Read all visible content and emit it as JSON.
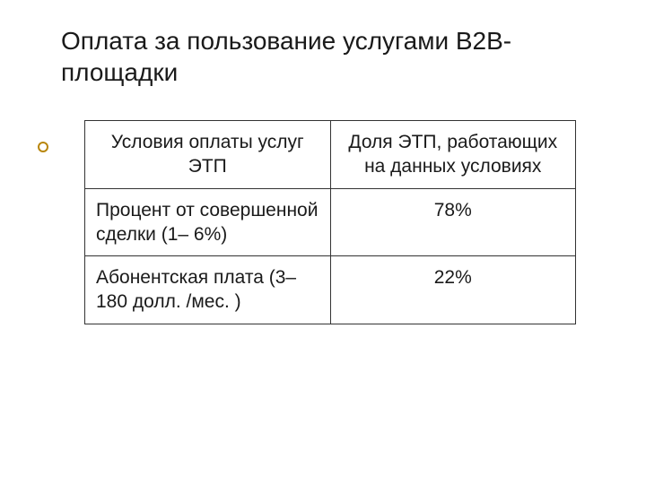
{
  "title": "Оплата за пользование услугами В2В-площадки",
  "table": {
    "headers": {
      "col1": "Условия оплаты услуг ЭТП",
      "col2": "Доля ЭТП, работающих на данных условиях"
    },
    "rows": [
      {
        "condition": "Процент от совершенной сделки (1– 6%)",
        "share": "78%"
      },
      {
        "condition": "Абонентская плата (3– 180 долл. /мес. )",
        "share": "22%"
      }
    ]
  },
  "colors": {
    "text": "#1a1a1a",
    "border": "#333333",
    "bullet_border": "#b8860b",
    "background": "#ffffff"
  },
  "typography": {
    "title_fontsize": 28,
    "cell_fontsize": 21,
    "font_family": "Verdana"
  }
}
